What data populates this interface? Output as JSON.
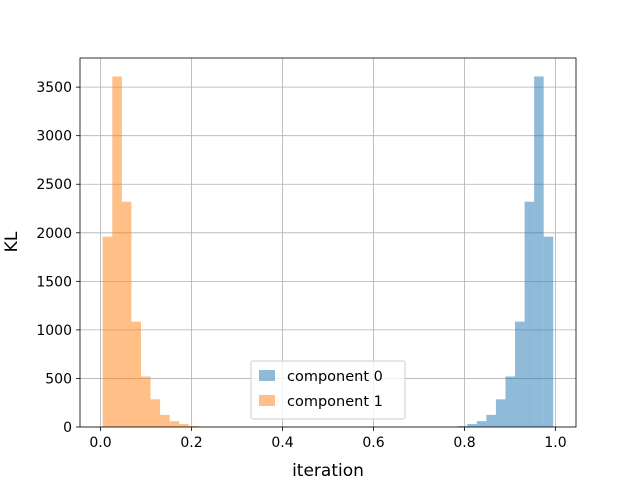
{
  "chart_data": {
    "type": "bar",
    "subtype": "histogram",
    "xlabel": "iteration",
    "ylabel": "KL",
    "xlim": [
      -0.045,
      1.045
    ],
    "ylim": [
      0,
      3800
    ],
    "grid": true,
    "legend_position": "lower-center",
    "x_ticks": [
      0.0,
      0.2,
      0.4,
      0.6,
      0.8,
      1.0
    ],
    "x_tick_labels": [
      "0.0",
      "0.2",
      "0.4",
      "0.6",
      "0.8",
      "1.0"
    ],
    "y_ticks": [
      0,
      500,
      1000,
      1500,
      2000,
      2500,
      3000,
      3500
    ],
    "y_tick_labels": [
      "0",
      "500",
      "1000",
      "1500",
      "2000",
      "2500",
      "3000",
      "3500"
    ],
    "series": [
      {
        "name": "component 0",
        "color": "#1f77b4",
        "alpha": 0.5,
        "bin_edges": [
          0.785,
          0.806,
          0.827,
          0.848,
          0.869,
          0.89,
          0.911,
          0.932,
          0.953,
          0.974,
          0.995
        ],
        "counts": [
          10,
          30,
          60,
          125,
          285,
          520,
          1085,
          2320,
          3610,
          1960
        ]
      },
      {
        "name": "component 1",
        "color": "#ff7f0e",
        "alpha": 0.5,
        "bin_edges": [
          0.005,
          0.026,
          0.047,
          0.068,
          0.089,
          0.11,
          0.131,
          0.152,
          0.173,
          0.194,
          0.215
        ],
        "counts": [
          1960,
          3610,
          2320,
          1085,
          520,
          285,
          125,
          60,
          30,
          10
        ]
      }
    ]
  }
}
